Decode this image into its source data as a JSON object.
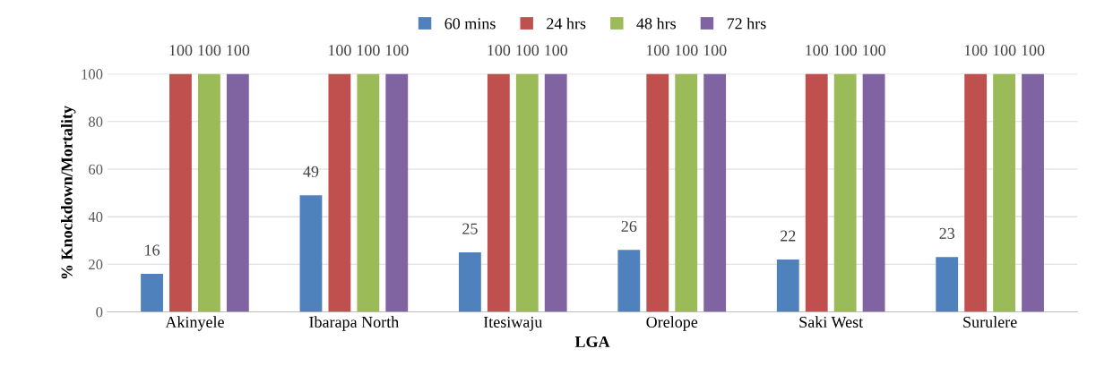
{
  "chart_data": {
    "type": "bar",
    "xlabel": "LGA",
    "ylabel": "% Knockdown/Mortality",
    "categories": [
      "Akinyele",
      "Ibarapa North",
      "Itesiwaju",
      "Orelope",
      "Saki West",
      "Surulere"
    ],
    "series": [
      {
        "name": "60 mins",
        "color": "#4f81bd",
        "values": [
          16,
          49,
          25,
          26,
          22,
          23
        ]
      },
      {
        "name": "24 hrs",
        "color": "#c0504d",
        "values": [
          100,
          100,
          100,
          100,
          100,
          100
        ]
      },
      {
        "name": "48 hrs",
        "color": "#9bbb59",
        "values": [
          100,
          100,
          100,
          100,
          100,
          100
        ]
      },
      {
        "name": "72 hrs",
        "color": "#8064a2",
        "values": [
          100,
          100,
          100,
          100,
          100,
          100
        ]
      }
    ],
    "ylim": [
      0,
      100
    ],
    "yticks": [
      0,
      20,
      40,
      60,
      80,
      100
    ],
    "grid": "y",
    "legend": "top",
    "data_labels": true
  }
}
